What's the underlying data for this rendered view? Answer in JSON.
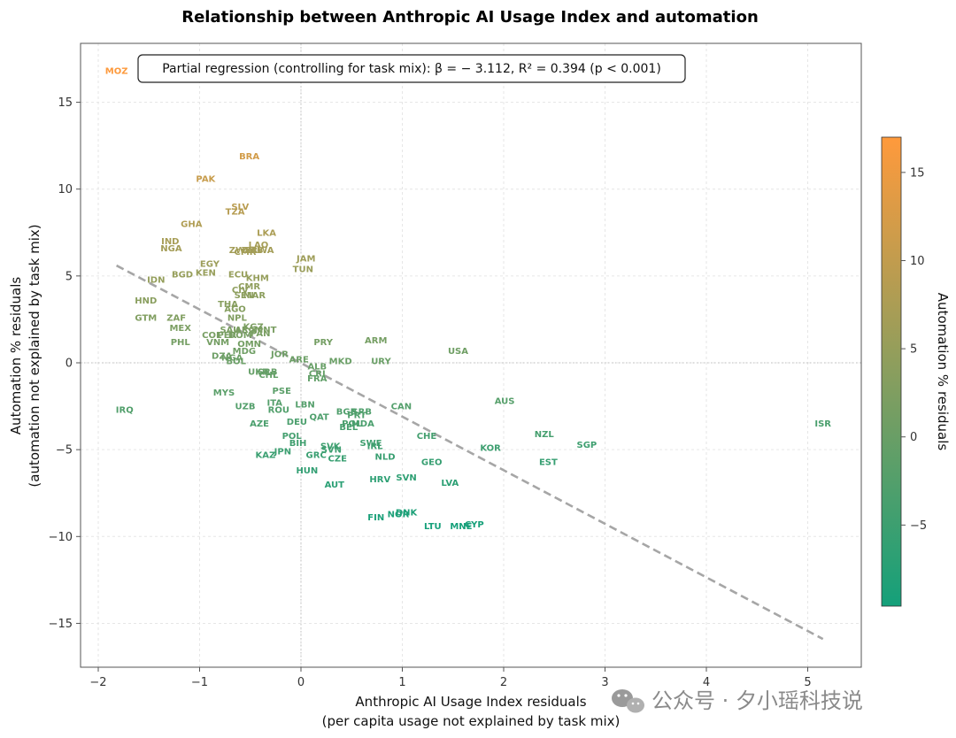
{
  "watermark": "公众号 · 夕小瑶科技说",
  "chart_data": {
    "type": "scatter",
    "title": "Relationship between Anthropic AI Usage Index and automation",
    "title_color": "#B85C3E",
    "xlabel": "Anthropic AI Usage Index residuals",
    "xlabel_sub": "(per capita usage not explained by task mix)",
    "ylabel": "Automation % residuals",
    "ylabel_sub": "(automation not explained by task mix)",
    "xlim": [
      -2.15,
      5.5
    ],
    "ylim": [
      -17.5,
      18.2
    ],
    "xticks": [
      -2,
      -1,
      0,
      1,
      2,
      3,
      4,
      5
    ],
    "xtick_labels": [
      "−2",
      "−1",
      "0",
      "1",
      "2",
      "3",
      "4",
      "5"
    ],
    "yticks": [
      -15,
      -10,
      -5,
      0,
      5,
      10,
      15
    ],
    "ytick_labels": [
      "−15",
      "−10",
      "−5",
      "0",
      "5",
      "10",
      "15"
    ],
    "grid": true,
    "zero_lines": true,
    "annotation": "Partial regression (controlling for task mix): β = − 3.112, R² = 0.394 (p < 0.001)",
    "regression_line": {
      "x": [
        -1.82,
        5.15
      ],
      "y": [
        5.6,
        -15.9
      ]
    },
    "colorbar": {
      "label": "Automation % residuals",
      "min": -9.6,
      "max": 17.0,
      "ticks": [
        -5,
        0,
        5,
        10,
        15
      ],
      "tick_labels": [
        "−5",
        "0",
        "5",
        "10",
        "15"
      ],
      "colors": [
        "#14A07A",
        "#8A9E5E",
        "#FF9A3C"
      ]
    },
    "points": [
      {
        "label": "MOZ",
        "x": -1.82,
        "y": 16.8
      },
      {
        "label": "BRA",
        "x": -0.51,
        "y": 11.9
      },
      {
        "label": "PAK",
        "x": -0.94,
        "y": 10.6
      },
      {
        "label": "SLV",
        "x": -0.6,
        "y": 9.0
      },
      {
        "label": "TZA",
        "x": -0.65,
        "y": 8.7
      },
      {
        "label": "GHA",
        "x": -1.08,
        "y": 8.0
      },
      {
        "label": "LKA",
        "x": -0.34,
        "y": 7.5
      },
      {
        "label": "IND",
        "x": -1.29,
        "y": 7.0
      },
      {
        "label": "NGA",
        "x": -1.28,
        "y": 6.6
      },
      {
        "label": "LAO",
        "x": -0.42,
        "y": 6.8
      },
      {
        "label": "ZWE",
        "x": -0.6,
        "y": 6.5
      },
      {
        "label": "CMR",
        "x": -0.55,
        "y": 6.4
      },
      {
        "label": "ZMB",
        "x": -0.48,
        "y": 6.5
      },
      {
        "label": "RWA",
        "x": -0.38,
        "y": 6.5
      },
      {
        "label": "JAM",
        "x": 0.05,
        "y": 6.0
      },
      {
        "label": "TUN",
        "x": 0.02,
        "y": 5.4
      },
      {
        "label": "EGY",
        "x": -0.9,
        "y": 5.7
      },
      {
        "label": "BGD",
        "x": -1.17,
        "y": 5.1
      },
      {
        "label": "KEN",
        "x": -0.94,
        "y": 5.2
      },
      {
        "label": "ECU",
        "x": -0.62,
        "y": 5.1
      },
      {
        "label": "KHM",
        "x": -0.43,
        "y": 4.9
      },
      {
        "label": "IDN",
        "x": -1.43,
        "y": 4.8
      },
      {
        "label": "CMR",
        "x": -0.51,
        "y": 4.4
      },
      {
        "label": "CIV",
        "x": -0.6,
        "y": 4.2
      },
      {
        "label": "SEN",
        "x": -0.56,
        "y": 3.9
      },
      {
        "label": "MAR",
        "x": -0.46,
        "y": 3.9
      },
      {
        "label": "HND",
        "x": -1.53,
        "y": 3.6
      },
      {
        "label": "THA",
        "x": -0.72,
        "y": 3.4
      },
      {
        "label": "AGO",
        "x": -0.65,
        "y": 3.1
      },
      {
        "label": "GTM",
        "x": -1.53,
        "y": 2.6
      },
      {
        "label": "ZAF",
        "x": -1.23,
        "y": 2.6
      },
      {
        "label": "NPL",
        "x": -0.63,
        "y": 2.6
      },
      {
        "label": "MEX",
        "x": -1.19,
        "y": 2.0
      },
      {
        "label": "KGZ",
        "x": -0.47,
        "y": 2.1
      },
      {
        "label": "SAU",
        "x": -0.7,
        "y": 1.9
      },
      {
        "label": "ARG",
        "x": -0.55,
        "y": 1.9
      },
      {
        "label": "PAN",
        "x": -0.4,
        "y": 1.7
      },
      {
        "label": "MNT",
        "x": -0.35,
        "y": 1.9
      },
      {
        "label": "COL",
        "x": -0.88,
        "y": 1.6
      },
      {
        "label": "PER",
        "x": -0.73,
        "y": 1.6
      },
      {
        "label": "DOM",
        "x": -0.6,
        "y": 1.6
      },
      {
        "label": "PHL",
        "x": -1.19,
        "y": 1.2
      },
      {
        "label": "VNM",
        "x": -0.82,
        "y": 1.2
      },
      {
        "label": "OMN",
        "x": -0.51,
        "y": 1.1
      },
      {
        "label": "PRY",
        "x": 0.22,
        "y": 1.2
      },
      {
        "label": "ARM",
        "x": 0.74,
        "y": 1.3
      },
      {
        "label": "USA",
        "x": 1.55,
        "y": 0.7
      },
      {
        "label": "MDG",
        "x": -0.56,
        "y": 0.7
      },
      {
        "label": "DZA",
        "x": -0.78,
        "y": 0.4
      },
      {
        "label": "NGA",
        "x": -0.68,
        "y": 0.3
      },
      {
        "label": "BOL",
        "x": -0.64,
        "y": 0.1
      },
      {
        "label": "JOR",
        "x": -0.21,
        "y": 0.5
      },
      {
        "label": "ARE",
        "x": -0.02,
        "y": 0.2
      },
      {
        "label": "MKD",
        "x": 0.39,
        "y": 0.1
      },
      {
        "label": "URY",
        "x": 0.79,
        "y": 0.1
      },
      {
        "label": "ALB",
        "x": 0.16,
        "y": -0.2
      },
      {
        "label": "UKR",
        "x": -0.42,
        "y": -0.5
      },
      {
        "label": "SRB",
        "x": -0.33,
        "y": -0.5
      },
      {
        "label": "CHL",
        "x": -0.32,
        "y": -0.7
      },
      {
        "label": "CRI",
        "x": 0.16,
        "y": -0.6
      },
      {
        "label": "FRA",
        "x": 0.16,
        "y": -0.9
      },
      {
        "label": "MYS",
        "x": -0.76,
        "y": -1.7
      },
      {
        "label": "PSE",
        "x": -0.19,
        "y": -1.6
      },
      {
        "label": "ITA",
        "x": -0.26,
        "y": -2.3
      },
      {
        "label": "LBN",
        "x": 0.04,
        "y": -2.4
      },
      {
        "label": "CAN",
        "x": 0.99,
        "y": -2.5
      },
      {
        "label": "AUS",
        "x": 2.01,
        "y": -2.2
      },
      {
        "label": "UZB",
        "x": -0.55,
        "y": -2.5
      },
      {
        "label": "ROU",
        "x": -0.22,
        "y": -2.7
      },
      {
        "label": "BGR",
        "x": 0.45,
        "y": -2.8
      },
      {
        "label": "SRB",
        "x": 0.6,
        "y": -2.8
      },
      {
        "label": "PRT",
        "x": 0.55,
        "y": -3.0
      },
      {
        "label": "QAT",
        "x": 0.18,
        "y": -3.1
      },
      {
        "label": "POL",
        "x": 0.5,
        "y": -3.5
      },
      {
        "label": "MDA",
        "x": 0.61,
        "y": -3.5
      },
      {
        "label": "BEL",
        "x": 0.47,
        "y": -3.7
      },
      {
        "label": "IRQ",
        "x": -1.74,
        "y": -2.7
      },
      {
        "label": "AZE",
        "x": -0.41,
        "y": -3.5
      },
      {
        "label": "DEU",
        "x": -0.04,
        "y": -3.4
      },
      {
        "label": "CHE",
        "x": 1.24,
        "y": -4.2
      },
      {
        "label": "NZL",
        "x": 2.4,
        "y": -4.1
      },
      {
        "label": "ISR",
        "x": 5.15,
        "y": -3.5
      },
      {
        "label": "POL",
        "x": -0.09,
        "y": -4.2
      },
      {
        "label": "BIH",
        "x": -0.03,
        "y": -4.6
      },
      {
        "label": "SWE",
        "x": 0.69,
        "y": -4.6
      },
      {
        "label": "IRL",
        "x": 0.73,
        "y": -4.8
      },
      {
        "label": "SVK",
        "x": 0.29,
        "y": -4.8
      },
      {
        "label": "SVN",
        "x": 0.3,
        "y": -5.0
      },
      {
        "label": "KOR",
        "x": 1.87,
        "y": -4.9
      },
      {
        "label": "SGP",
        "x": 2.82,
        "y": -4.7
      },
      {
        "label": "KAZ",
        "x": -0.35,
        "y": -5.3
      },
      {
        "label": "JPN",
        "x": -0.18,
        "y": -5.1
      },
      {
        "label": "GRC",
        "x": 0.15,
        "y": -5.3
      },
      {
        "label": "CZE",
        "x": 0.36,
        "y": -5.5
      },
      {
        "label": "NLD",
        "x": 0.83,
        "y": -5.4
      },
      {
        "label": "GEO",
        "x": 1.29,
        "y": -5.7
      },
      {
        "label": "EST",
        "x": 2.44,
        "y": -5.7
      },
      {
        "label": "HUN",
        "x": 0.06,
        "y": -6.2
      },
      {
        "label": "HRV",
        "x": 0.78,
        "y": -6.7
      },
      {
        "label": "SVN",
        "x": 1.04,
        "y": -6.6
      },
      {
        "label": "AUT",
        "x": 0.33,
        "y": -7.0
      },
      {
        "label": "LVA",
        "x": 1.47,
        "y": -6.9
      },
      {
        "label": "FIN",
        "x": 0.74,
        "y": -8.9
      },
      {
        "label": "NOR",
        "x": 0.96,
        "y": -8.7
      },
      {
        "label": "DNK",
        "x": 1.04,
        "y": -8.6
      },
      {
        "label": "LTU",
        "x": 1.3,
        "y": -9.4
      },
      {
        "label": "MNE",
        "x": 1.58,
        "y": -9.4
      },
      {
        "label": "CYP",
        "x": 1.71,
        "y": -9.3
      }
    ]
  }
}
